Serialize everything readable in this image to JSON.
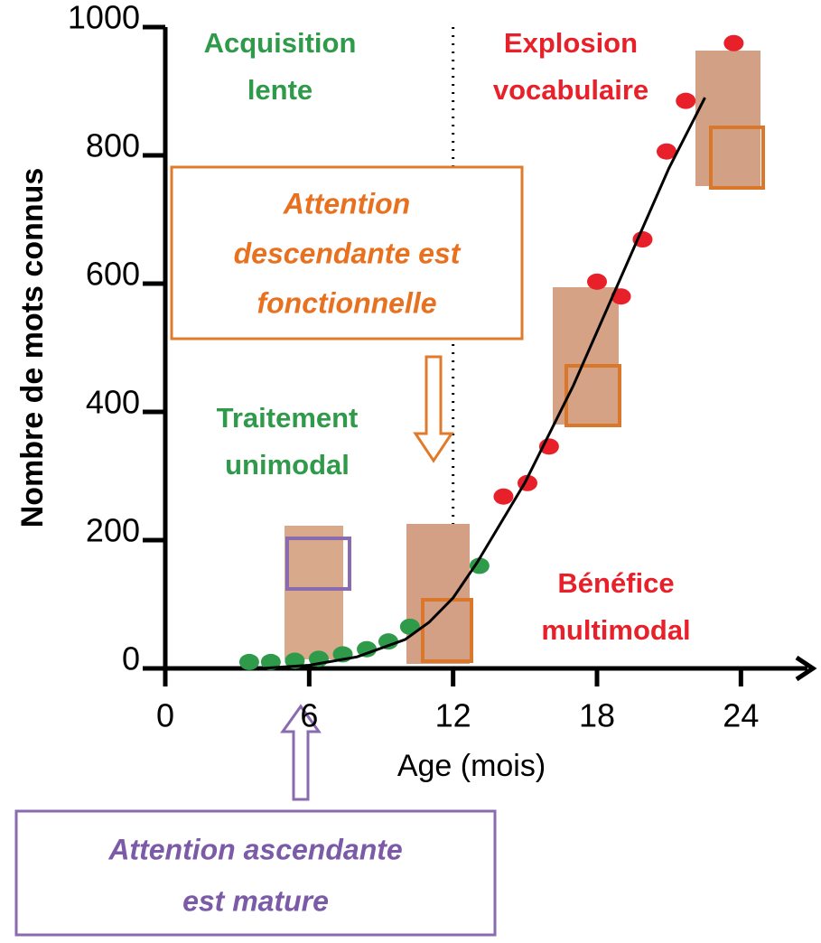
{
  "chart_data": {
    "type": "scatter",
    "y_label": "Nombre de mots connus",
    "x_label": "Age (mois)",
    "xlim": [
      0,
      27
    ],
    "ylim": [
      0,
      1000
    ],
    "xticks": [
      0,
      6,
      12,
      18,
      24
    ],
    "yticks": [
      0,
      200,
      400,
      600,
      800,
      1000
    ],
    "vline": 12,
    "series": [
      {
        "type": "scatter",
        "color": "#2e9a4a",
        "x": [
          3.5,
          4.4,
          5.4,
          6.4,
          7.4,
          8.4,
          9.3,
          10.2,
          13.1
        ],
        "values": [
          10,
          10,
          12,
          15,
          22,
          30,
          42,
          65,
          160
        ]
      },
      {
        "type": "scatter",
        "color": "#e8202a",
        "x": [
          14.1,
          15.1,
          16.0,
          18.0,
          19.0,
          19.9,
          20.9,
          21.7,
          23.7
        ],
        "values": [
          268,
          289,
          346,
          603,
          580,
          669,
          806,
          885,
          975
        ]
      },
      {
        "type": "line",
        "color": "#000000",
        "x": [
          4,
          6,
          8,
          10,
          11,
          12,
          13,
          15,
          17,
          19,
          21,
          22.5
        ],
        "values": [
          0,
          5,
          18,
          45,
          72,
          110,
          165,
          290,
          440,
          610,
          780,
          890
        ]
      }
    ],
    "annotations": {
      "slow": [
        "Acquisition",
        "lente"
      ],
      "explosion": [
        "Explosion",
        "vocabulaire"
      ],
      "unimodal": [
        "Traitement",
        "unimodal"
      ],
      "multimodal": [
        "Bénéfice",
        "multimodal"
      ],
      "top_down": [
        "Attention",
        "descendante est",
        "fonctionnelle"
      ],
      "bottom_up": [
        "Attention ascendante",
        "est mature"
      ]
    }
  }
}
